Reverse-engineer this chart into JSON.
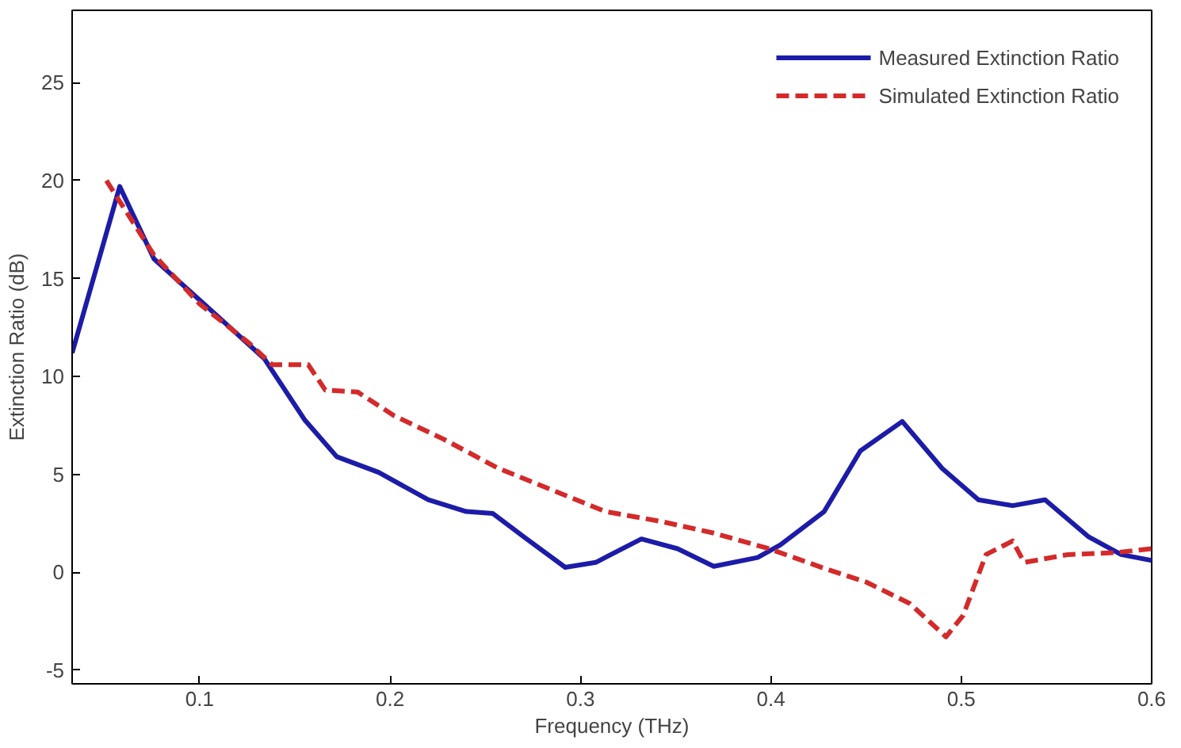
{
  "chart_data": {
    "type": "line",
    "xlabel": "Frequency (THz)",
    "ylabel": "Extinction Ratio (dB)",
    "xlim": [
      0.033,
      0.6
    ],
    "ylim": [
      -5.7,
      28.7
    ],
    "xticks": [
      0.1,
      0.2,
      0.3,
      0.4,
      0.5,
      0.6
    ],
    "yticks": [
      -5,
      0,
      5,
      10,
      15,
      20,
      25
    ],
    "grid": false,
    "legend": "top right",
    "marker": "none",
    "series": [
      {
        "name": "Measured Extinction Ratio",
        "color": "#1c1ca8",
        "line_style": "solid",
        "x": [
          0.033,
          0.058,
          0.076,
          0.1,
          0.134,
          0.155,
          0.172,
          0.194,
          0.22,
          0.24,
          0.254,
          0.271,
          0.292,
          0.308,
          0.332,
          0.351,
          0.37,
          0.393,
          0.405,
          0.428,
          0.447,
          0.469,
          0.49,
          0.509,
          0.527,
          0.544,
          0.567,
          0.584,
          0.6
        ],
        "values": [
          11.2,
          19.7,
          16,
          13.9,
          10.9,
          7.8,
          5.9,
          5.1,
          3.7,
          3.1,
          3.0,
          1.75,
          0.25,
          0.5,
          1.7,
          1.2,
          0.3,
          0.75,
          1.4,
          3.1,
          6.2,
          7.7,
          5.3,
          3.7,
          3.4,
          3.7,
          1.8,
          0.9,
          0.6
        ]
      },
      {
        "name": "Simulated Extinction Ratio",
        "color": "#d42a2a",
        "line_style": "dashed",
        "x": [
          0.051,
          0.076,
          0.1,
          0.126,
          0.138,
          0.157,
          0.166,
          0.183,
          0.202,
          0.228,
          0.257,
          0.285,
          0.313,
          0.342,
          0.37,
          0.399,
          0.428,
          0.45,
          0.473,
          0.492,
          0.501,
          0.513,
          0.527,
          0.533,
          0.556,
          0.581,
          0.6
        ],
        "values": [
          20,
          16.2,
          13.7,
          11.7,
          10.6,
          10.6,
          9.3,
          9.2,
          8.0,
          6.8,
          5.3,
          4.2,
          3.1,
          2.6,
          2.0,
          1.2,
          0.2,
          -0.5,
          -1.6,
          -3.3,
          -2.2,
          0.9,
          1.6,
          0.5,
          0.9,
          1.0,
          1.2
        ]
      }
    ]
  }
}
